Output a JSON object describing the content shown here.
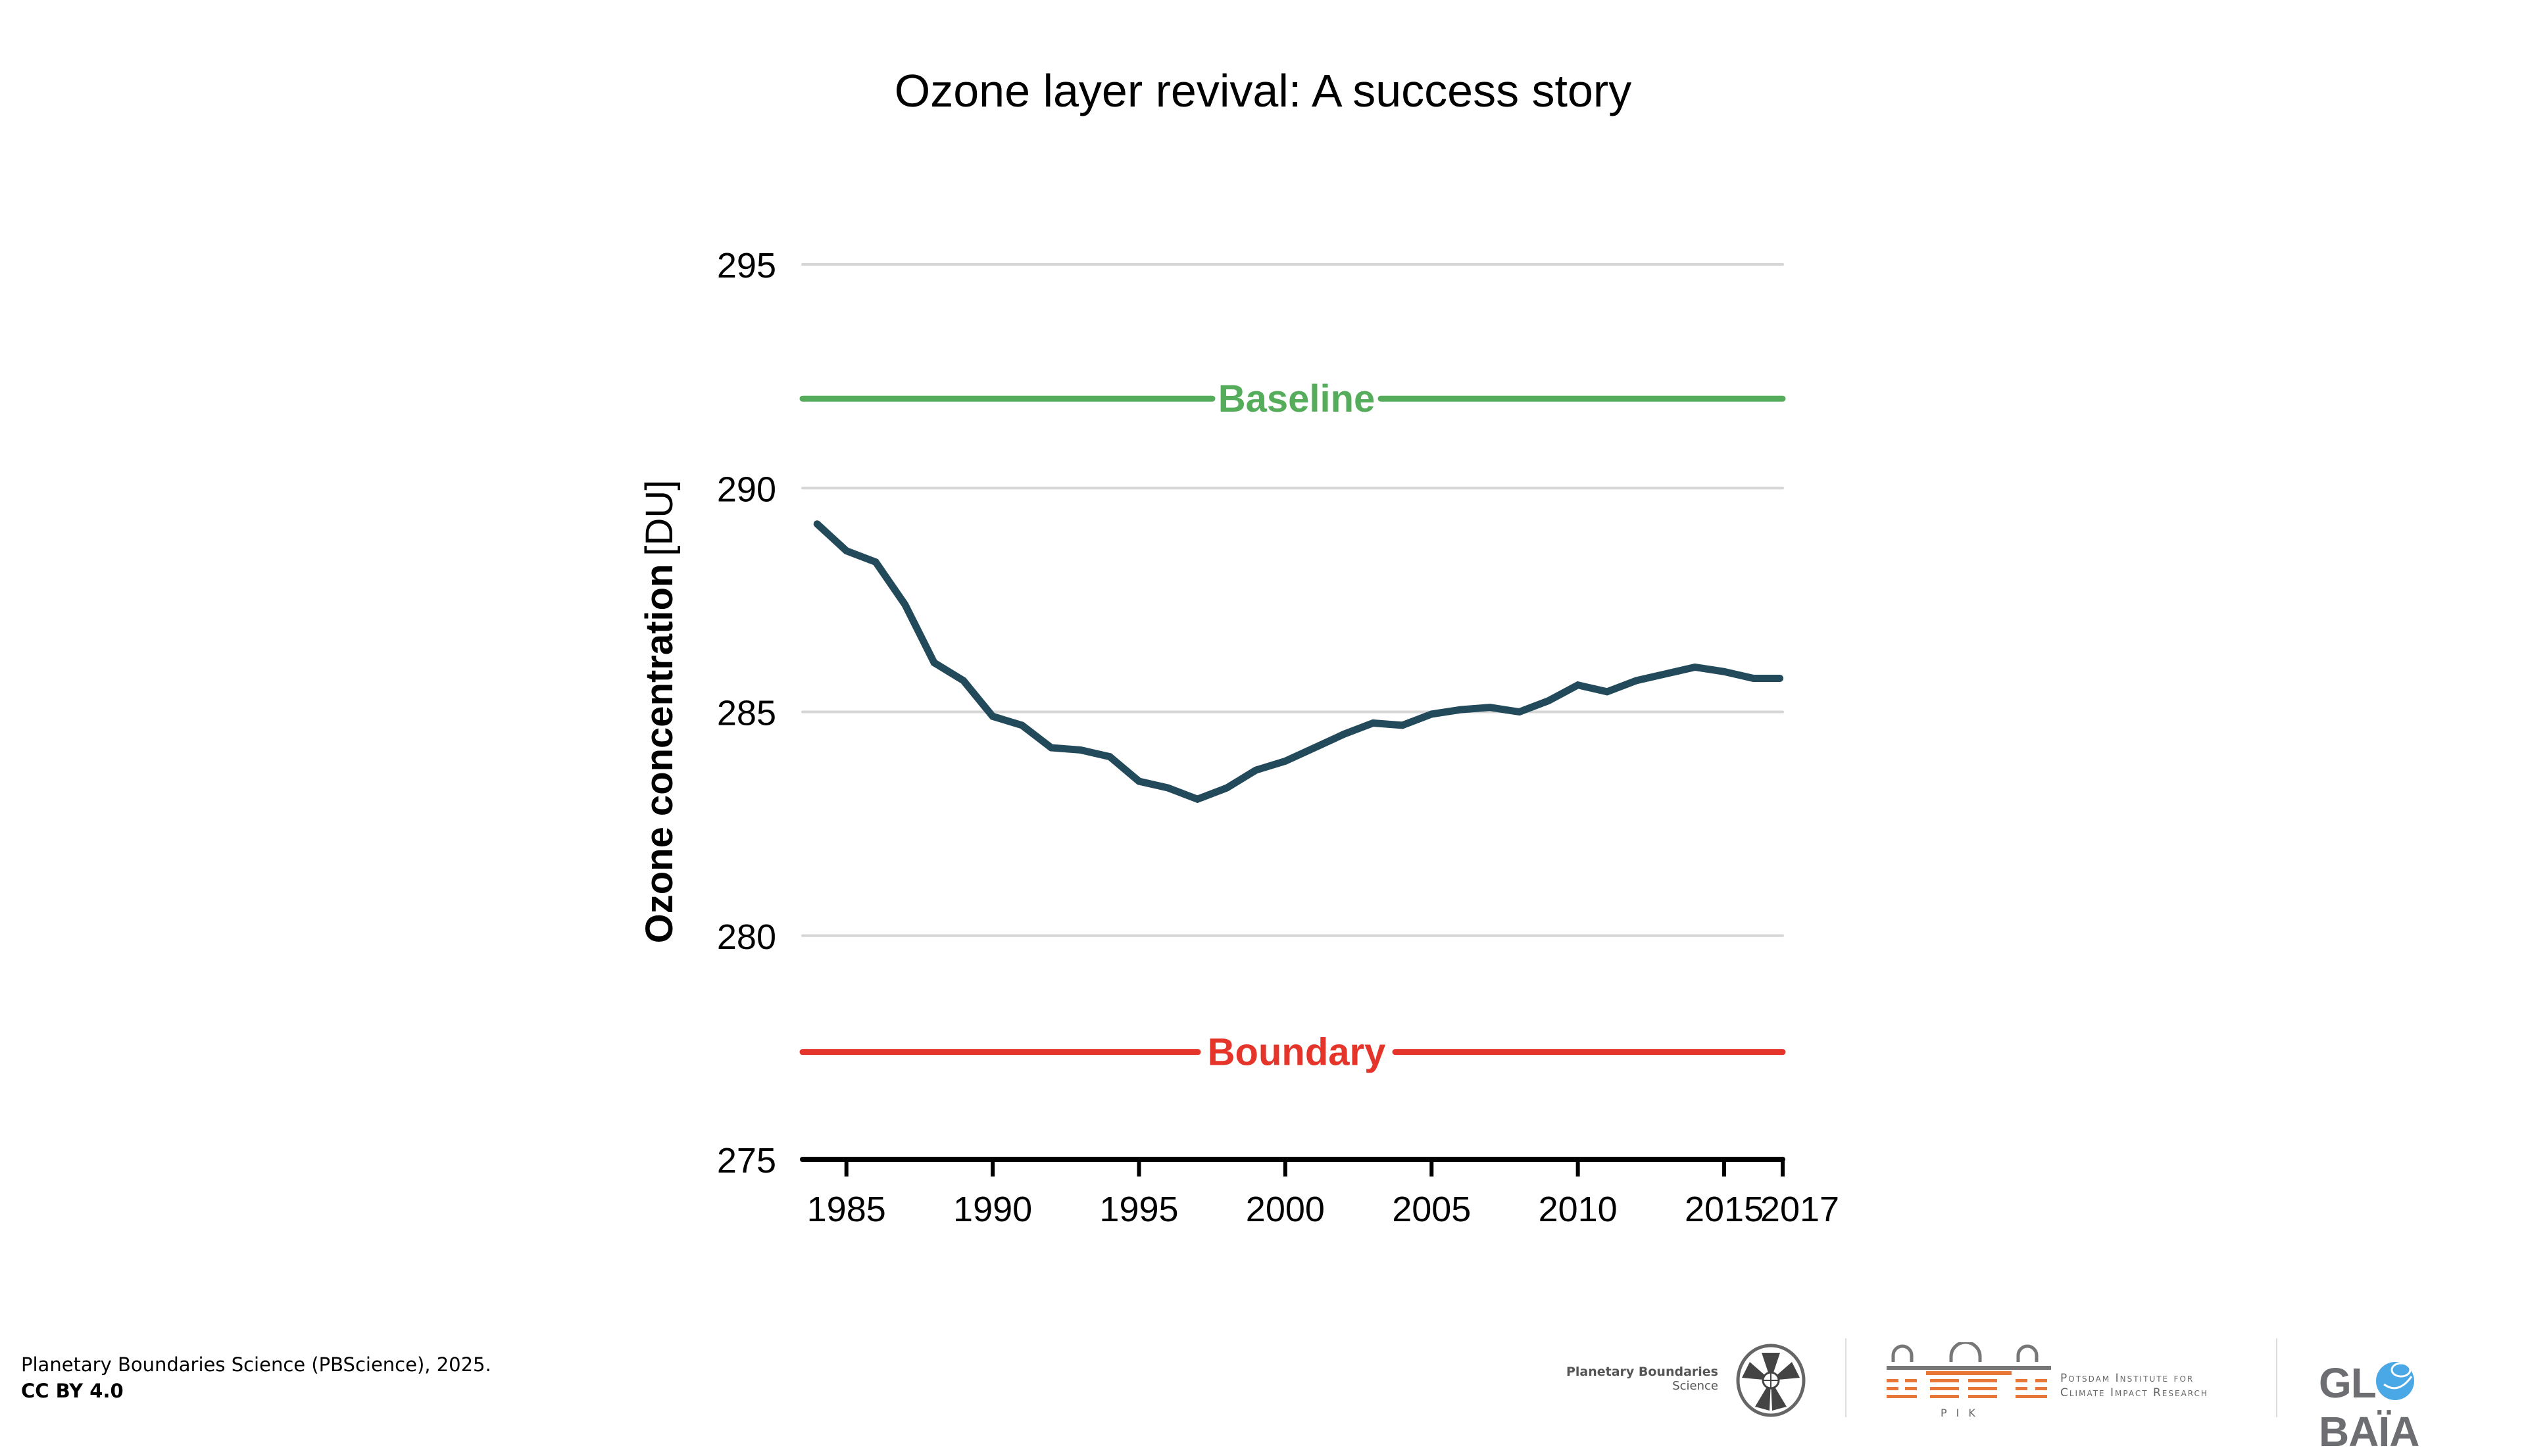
{
  "chart_data": {
    "type": "line",
    "title": "Ozone layer revival: A success story",
    "xlabel": "",
    "ylabel_bold": "Ozone concentration",
    "ylabel_unit": "[DU]",
    "xlim": [
      1983.5,
      2017
    ],
    "ylim": [
      275,
      296
    ],
    "grid": true,
    "y_ticks": [
      295,
      290,
      285,
      280,
      275
    ],
    "y_tick_labels": [
      "295",
      "290",
      "285",
      "280",
      "275"
    ],
    "x_ticks": [
      1985,
      1990,
      1995,
      2000,
      2005,
      2010,
      2015,
      2017
    ],
    "x_tick_labels": [
      "1985",
      "1990",
      "1995",
      "2000",
      "2005",
      "2010",
      "2015",
      "2017"
    ],
    "series": [
      {
        "name": "Ozone concentration",
        "color": "#234a5a",
        "x": [
          1984,
          1985,
          1986,
          1987,
          1988,
          1989,
          1990,
          1991,
          1992,
          1993,
          1994,
          1995,
          1996,
          1997,
          1998,
          1999,
          2000,
          2001,
          2002,
          2003,
          2004,
          2005,
          2006,
          2007,
          2008,
          2009,
          2010,
          2011,
          2012,
          2013,
          2014,
          2015,
          2016,
          2016.9
        ],
        "y": [
          289.2,
          288.6,
          288.35,
          287.4,
          286.1,
          285.7,
          284.9,
          284.7,
          284.2,
          284.15,
          284.0,
          283.45,
          283.3,
          283.05,
          283.3,
          283.7,
          283.9,
          284.2,
          284.5,
          284.75,
          284.7,
          284.95,
          285.05,
          285.1,
          285.0,
          285.25,
          285.6,
          285.45,
          285.7,
          285.85,
          286.0,
          285.9,
          285.75,
          285.75
        ]
      }
    ],
    "reference_lines": [
      {
        "name": "baseline",
        "label": "Baseline",
        "value": 292,
        "color": "#55ad5c"
      },
      {
        "name": "boundary",
        "label": "Boundary",
        "value": 277.4,
        "color": "#e5352a"
      }
    ]
  },
  "footer": {
    "credit_line1": "Planetary Boundaries Science (PBScience), 2025.",
    "credit_line2": "CC BY 4.0"
  },
  "logos": {
    "pb_line1": "Planetary Boundaries",
    "pb_line2": "Science",
    "pik_line1": "Potsdam Institute for",
    "pik_line2": "Climate Impact Research",
    "pik_letters": "PIK",
    "globaia_left": "GL",
    "globaia_right": "BAÏA",
    "pik_orange": "#e8773a",
    "globaia_blue": "#4aa8e6",
    "logo_gray": "#6d6e71"
  }
}
